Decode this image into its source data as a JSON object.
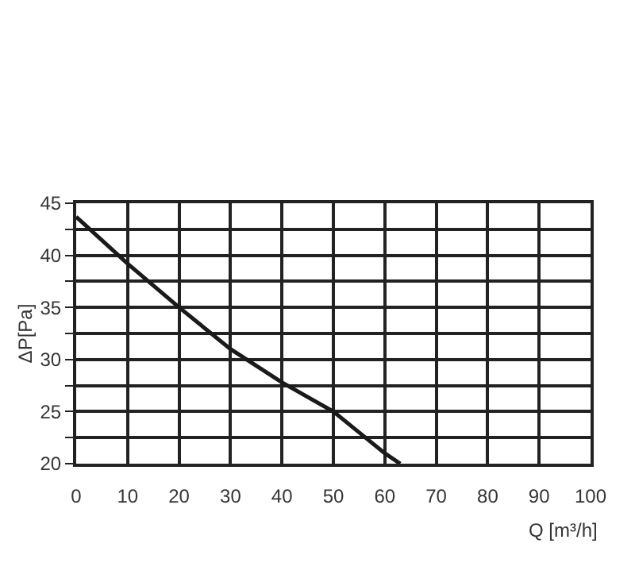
{
  "chart_data": {
    "type": "line",
    "xlabel": "Q [m³/h]",
    "ylabel": "ΔP[Pa]",
    "x": [
      0,
      10,
      20,
      30,
      40,
      50,
      55,
      60,
      63
    ],
    "series": [
      {
        "color": "#1a1a1a",
        "values": [
          43.7,
          39.2,
          35,
          31,
          27.8,
          25,
          23,
          21,
          20
        ]
      }
    ],
    "xlim": [
      0,
      100
    ],
    "xticks": [
      0,
      10,
      20,
      30,
      40,
      50,
      60,
      70,
      80,
      90,
      100
    ],
    "ylim": [
      20,
      45
    ],
    "yticks": [
      20,
      {
        "value": 22.5,
        "label": null
      },
      25,
      {
        "value": 27.5,
        "label": null
      },
      30,
      {
        "value": 32.5,
        "label": null
      },
      35,
      {
        "value": 37.5,
        "label": null
      },
      40,
      {
        "value": 42.5,
        "label": null
      },
      45
    ],
    "grid": true,
    "marker": "none",
    "line_style": "solid"
  }
}
